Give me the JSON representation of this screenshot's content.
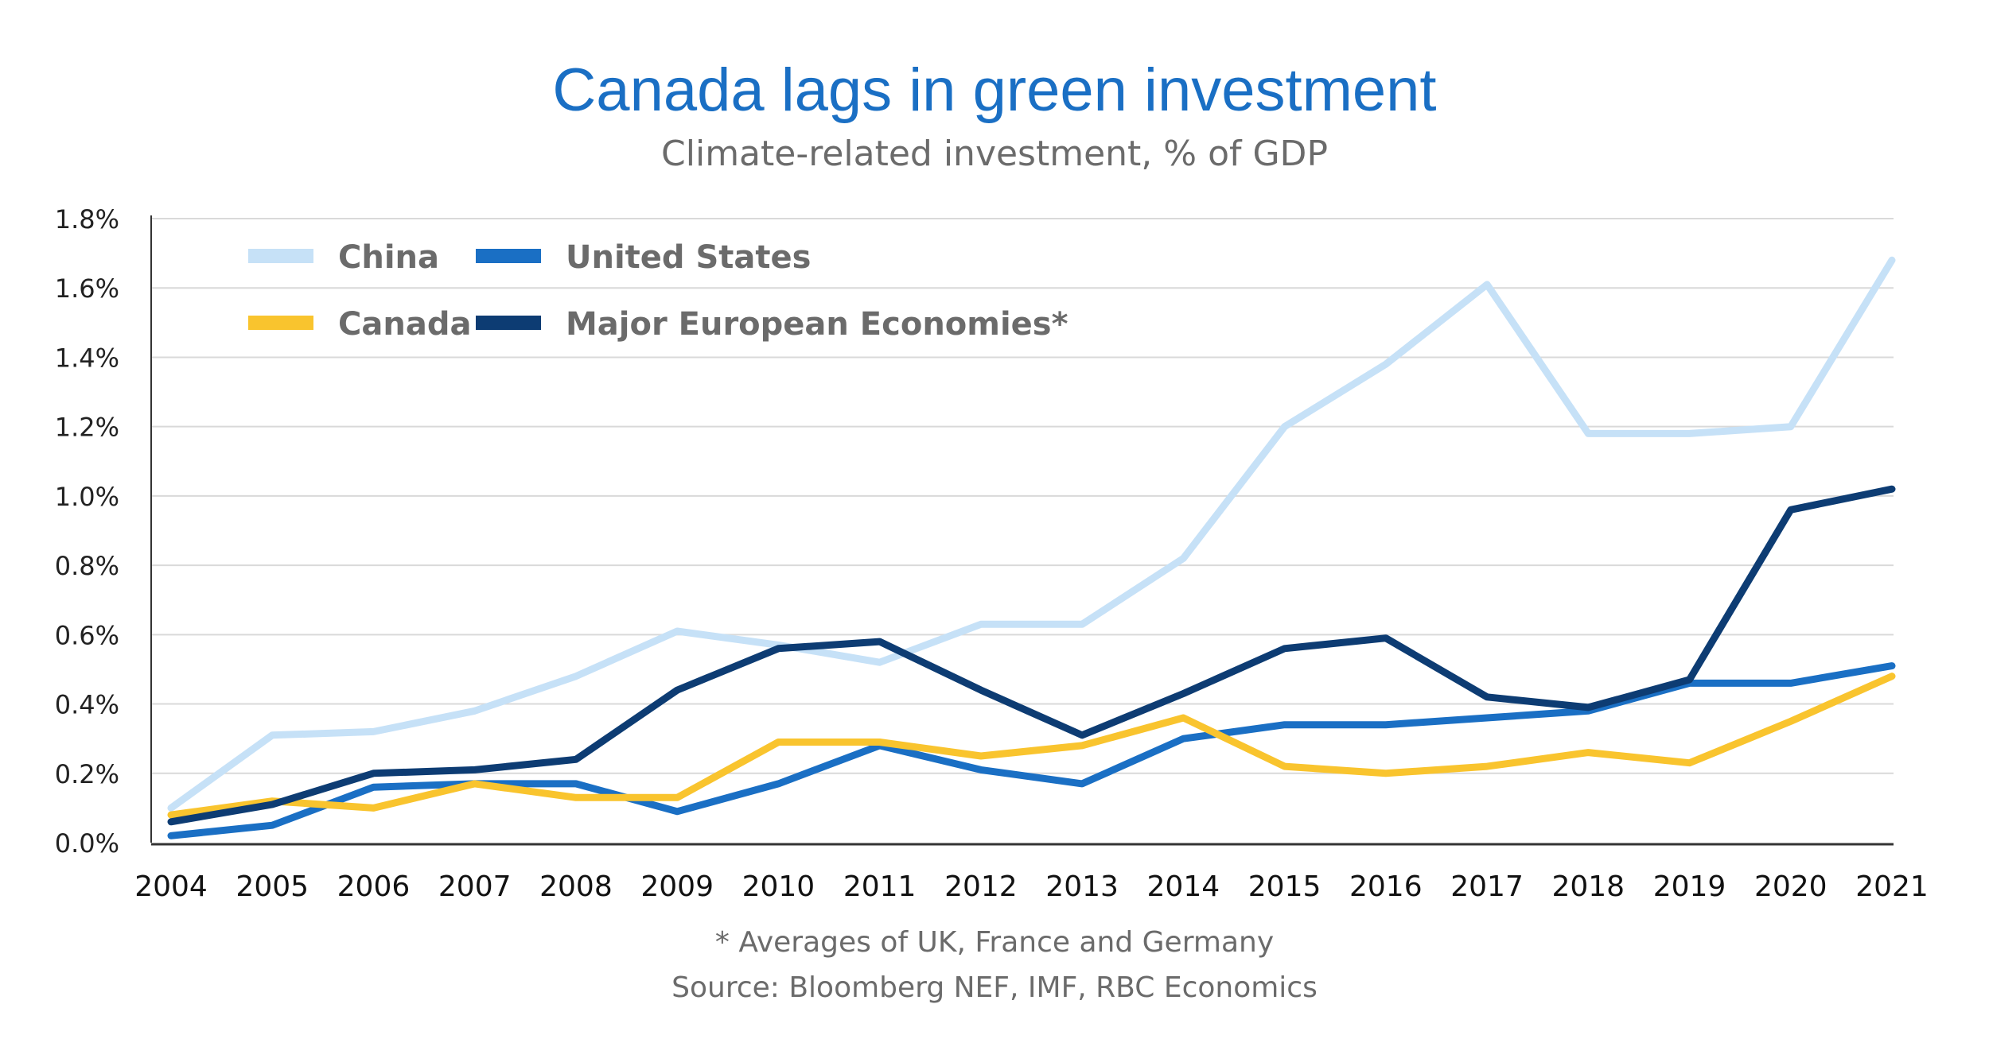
{
  "chart_data": {
    "type": "line",
    "title": "Canada lags in green investment",
    "subtitle": "Climate-related investment, % of GDP",
    "x": [
      "2004",
      "2005",
      "2006",
      "2007",
      "2008",
      "2009",
      "2010",
      "2011",
      "2012",
      "2013",
      "2014",
      "2015",
      "2016",
      "2017",
      "2018",
      "2019",
      "2020",
      "2021"
    ],
    "y_ticks": [
      "0.0%",
      "0.2%",
      "0.4%",
      "0.6%",
      "0.8%",
      "1.0%",
      "1.2%",
      "1.4%",
      "1.6%",
      "1.8%"
    ],
    "ylim": [
      0,
      1.8
    ],
    "grid": true,
    "legend_position": "top-left",
    "series": [
      {
        "name": "China",
        "color": "#c6e1f7",
        "values": [
          0.1,
          0.31,
          0.32,
          0.38,
          0.48,
          0.61,
          0.57,
          0.52,
          0.63,
          0.63,
          0.82,
          1.2,
          1.38,
          1.61,
          1.18,
          1.18,
          1.2,
          1.68
        ]
      },
      {
        "name": "United States",
        "color": "#1a6fc4",
        "values": [
          0.02,
          0.05,
          0.16,
          0.17,
          0.17,
          0.09,
          0.17,
          0.28,
          0.21,
          0.17,
          0.3,
          0.34,
          0.34,
          0.36,
          0.38,
          0.46,
          0.46,
          0.51
        ]
      },
      {
        "name": "Canada",
        "color": "#f9c42e",
        "values": [
          0.08,
          0.12,
          0.1,
          0.17,
          0.13,
          0.13,
          0.29,
          0.29,
          0.25,
          0.28,
          0.36,
          0.22,
          0.2,
          0.22,
          0.26,
          0.23,
          0.35,
          0.48
        ]
      },
      {
        "name": "Major European Economies*",
        "color": "#0d3c73",
        "values": [
          0.06,
          0.11,
          0.2,
          0.21,
          0.24,
          0.44,
          0.56,
          0.58,
          0.44,
          0.31,
          0.43,
          0.56,
          0.59,
          0.42,
          0.39,
          0.47,
          0.96,
          1.02
        ]
      }
    ]
  },
  "notes": {
    "footnote": "* Averages of UK, France and Germany",
    "source": "Source: Bloomberg NEF, IMF, RBC Economics"
  }
}
